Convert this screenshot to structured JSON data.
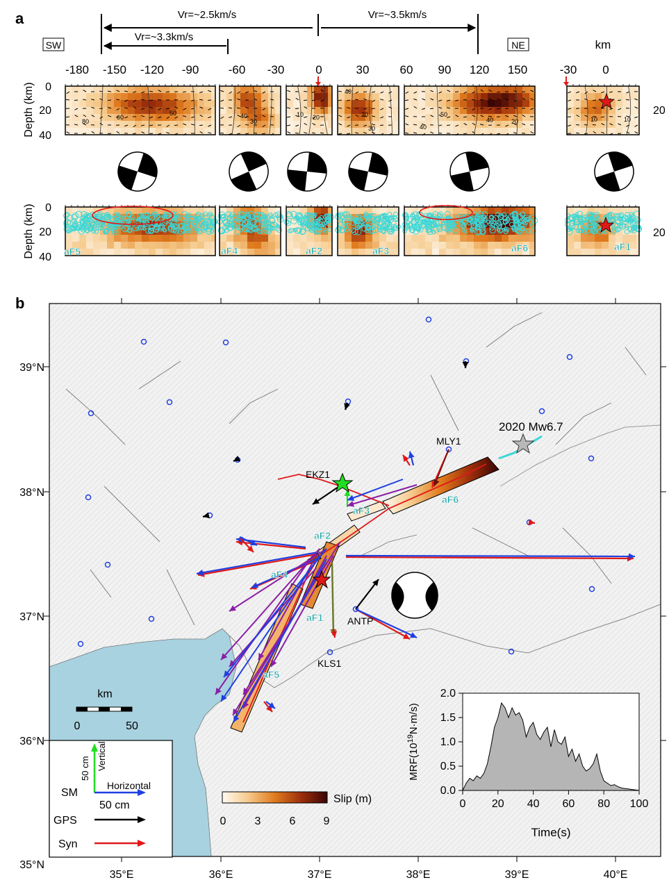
{
  "panel_a": {
    "letter": "a",
    "rupture_speeds": [
      "Vr=~2.5km/s",
      "Vr=~3.5km/s",
      "Vr=~3.3km/s"
    ],
    "side_labels": {
      "left": "SW",
      "right": "NE"
    },
    "km_label": "km",
    "top_ticks": [
      "-180",
      "-150",
      "-120",
      "-90",
      "-60",
      "-30",
      "0",
      "30",
      "60",
      "90",
      "120",
      "150"
    ],
    "inset_ticks": [
      "-30",
      "0"
    ],
    "depth_label": "Depth (km)",
    "depth_ticks": [
      "0",
      "20",
      "40"
    ],
    "right_tick": "20",
    "contour_labels": [
      "80",
      "60",
      "50",
      "40",
      "30",
      "20",
      "10",
      "40",
      "20",
      "40",
      "50",
      "40",
      "20",
      "30",
      "10",
      "10"
    ],
    "segments": [
      "aF5",
      "aF4",
      "aF2",
      "aF3",
      "aF6",
      "aF1"
    ]
  },
  "panel_b": {
    "letter": "b",
    "lat_ticks": [
      "39°N",
      "38°N",
      "37°N",
      "36°N",
      "35°N"
    ],
    "lon_ticks": [
      "35°E",
      "36°E",
      "37°E",
      "38°E",
      "39°E",
      "40°E"
    ],
    "event_label": "2020 Mw6.7",
    "stations": [
      "MLY1",
      "EKZ1",
      "ANTP",
      "KLS1"
    ],
    "segments": [
      "aF2",
      "aF3",
      "aF4",
      "aF6",
      "aF1",
      "aF5"
    ],
    "scale": {
      "label": "km",
      "ticks": [
        "0",
        "50"
      ]
    },
    "legend": {
      "vertical": "Vertical",
      "vertical_scale": "50 cm",
      "horizontal": "Horizontal",
      "horizontal_scale": "50 cm",
      "rows": [
        {
          "label": "SM",
          "color": "#1f3fe0"
        },
        {
          "label": "GPS",
          "color": "#000000"
        },
        {
          "label": "Syn",
          "color": "#e01818"
        }
      ]
    },
    "colorbar": {
      "label": "Slip (m)",
      "ticks": [
        "0",
        "3",
        "6",
        "9"
      ]
    },
    "mrf": {
      "ylabel_prefix": "MRF(10",
      "ylabel_exp": "19",
      "ylabel_suffix": "N·m/s)",
      "xlabel": "Time(s)",
      "xticks": [
        "0",
        "20",
        "40",
        "60",
        "80",
        "100"
      ],
      "yticks": [
        "0.0",
        "0.5",
        "1.0",
        "1.5",
        "2.0"
      ]
    }
  },
  "chart_data": {
    "type": "area",
    "xlabel": "Time(s)",
    "ylabel": "MRF(10^19 N·m/s)",
    "xlim": [
      0,
      100
    ],
    "ylim": [
      0,
      2.0
    ],
    "x": [
      0,
      2,
      4,
      6,
      8,
      10,
      12,
      14,
      16,
      18,
      20,
      22,
      24,
      26,
      28,
      30,
      32,
      34,
      36,
      38,
      40,
      42,
      44,
      46,
      48,
      50,
      52,
      54,
      56,
      58,
      60,
      62,
      64,
      66,
      68,
      70,
      72,
      74,
      76,
      78,
      80,
      82,
      84,
      86,
      88,
      90,
      92,
      94,
      96,
      98,
      100
    ],
    "values": [
      0.0,
      0.15,
      0.25,
      0.2,
      0.3,
      0.25,
      0.35,
      0.55,
      0.9,
      1.3,
      1.5,
      1.8,
      1.7,
      1.5,
      1.7,
      1.55,
      1.6,
      1.45,
      1.1,
      1.3,
      1.4,
      1.15,
      1.05,
      1.2,
      1.3,
      0.9,
      1.25,
      1.0,
      0.95,
      1.1,
      0.7,
      0.85,
      0.6,
      0.75,
      0.5,
      0.4,
      0.45,
      0.55,
      0.75,
      0.4,
      0.2,
      0.15,
      0.1,
      0.12,
      0.08,
      0.05,
      0.04,
      0.03,
      0.02,
      0.01,
      0.0
    ]
  },
  "colors": {
    "sea": "#a8d2e0",
    "land": "#efefef",
    "slip_low": "#fff3e0",
    "slip_mid": "#e07b1e",
    "slip_high": "#4a0a06",
    "sm": "#1f3fe0",
    "gps": "#000000",
    "syn": "#e01818",
    "vertical": "#22dd22",
    "aftershock": "#3ad7d7"
  }
}
